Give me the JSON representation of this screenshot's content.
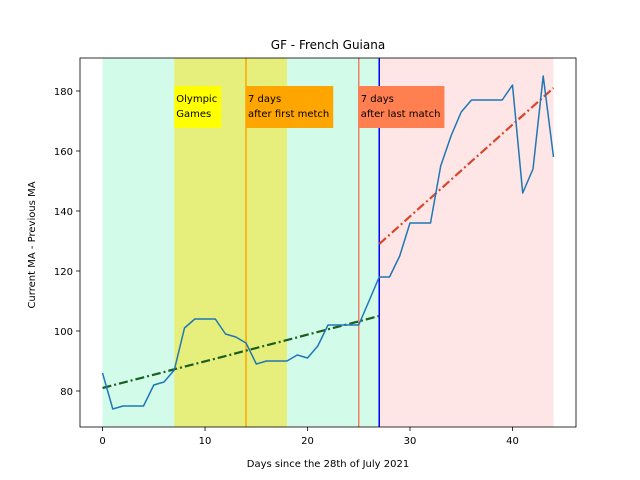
{
  "chart_data": {
    "type": "line",
    "title": "GF - French Guiana",
    "xlabel": "Days since the 28th of July 2021",
    "ylabel": "Current MA - Previous MA",
    "xlim": [
      -2.2,
      46.2
    ],
    "ylim": [
      68,
      191
    ],
    "xticks": [
      0,
      10,
      20,
      30,
      40
    ],
    "yticks": [
      80,
      100,
      120,
      140,
      160,
      180
    ],
    "grid": false,
    "series": [
      {
        "x": [
          0,
          1,
          2,
          3,
          4,
          5,
          6,
          7,
          8,
          9,
          10,
          11,
          12,
          13,
          14,
          15,
          16,
          17,
          18,
          19,
          20,
          21,
          22,
          23,
          24,
          25,
          26,
          27,
          28,
          29,
          30,
          31,
          32,
          33,
          34,
          35,
          36,
          37,
          38,
          39,
          40,
          41,
          42,
          43,
          44
        ],
        "values": [
          86,
          74,
          75,
          75,
          75,
          82,
          83,
          87,
          101,
          104,
          104,
          104,
          99,
          98,
          96,
          89,
          90,
          90,
          90,
          92,
          91,
          95,
          102,
          102,
          102,
          102,
          110,
          118,
          118,
          125,
          136,
          136,
          136,
          155,
          165,
          173,
          177,
          177,
          177,
          177,
          182,
          146,
          154,
          185,
          158
        ],
        "color": "#1f77b4"
      }
    ],
    "trend_lines": [
      {
        "x": [
          0,
          27
        ],
        "values": [
          81,
          105
        ],
        "color": "#1a5e20",
        "style": "dash-dot"
      },
      {
        "x": [
          27,
          44
        ],
        "values": [
          129,
          181
        ],
        "color": "#d9452b",
        "style": "dash-dot"
      }
    ],
    "shaded_regions": [
      {
        "x0": 0,
        "x1": 27,
        "color": "#d2fbe9"
      },
      {
        "x0": 7,
        "x1": 18,
        "color": "#e6ef7b"
      },
      {
        "x0": 27,
        "x1": 44,
        "color": "#fee6e6"
      }
    ],
    "vertical_lines": [
      {
        "x": 14,
        "color": "#ffa500"
      },
      {
        "x": 25,
        "color": "#f08060"
      },
      {
        "x": 27,
        "color": "#0000ff"
      }
    ],
    "annotations": [
      {
        "lines": [
          "Olympic",
          "Games"
        ],
        "x": 7,
        "y": 178,
        "bg": "#ffff00"
      },
      {
        "lines": [
          "7 days",
          "after first metch"
        ],
        "x": 14,
        "y": 178,
        "bg": "#ffa500"
      },
      {
        "lines": [
          "7 days",
          "after last match"
        ],
        "x": 25,
        "y": 178,
        "bg": "#ff7f50"
      }
    ]
  }
}
